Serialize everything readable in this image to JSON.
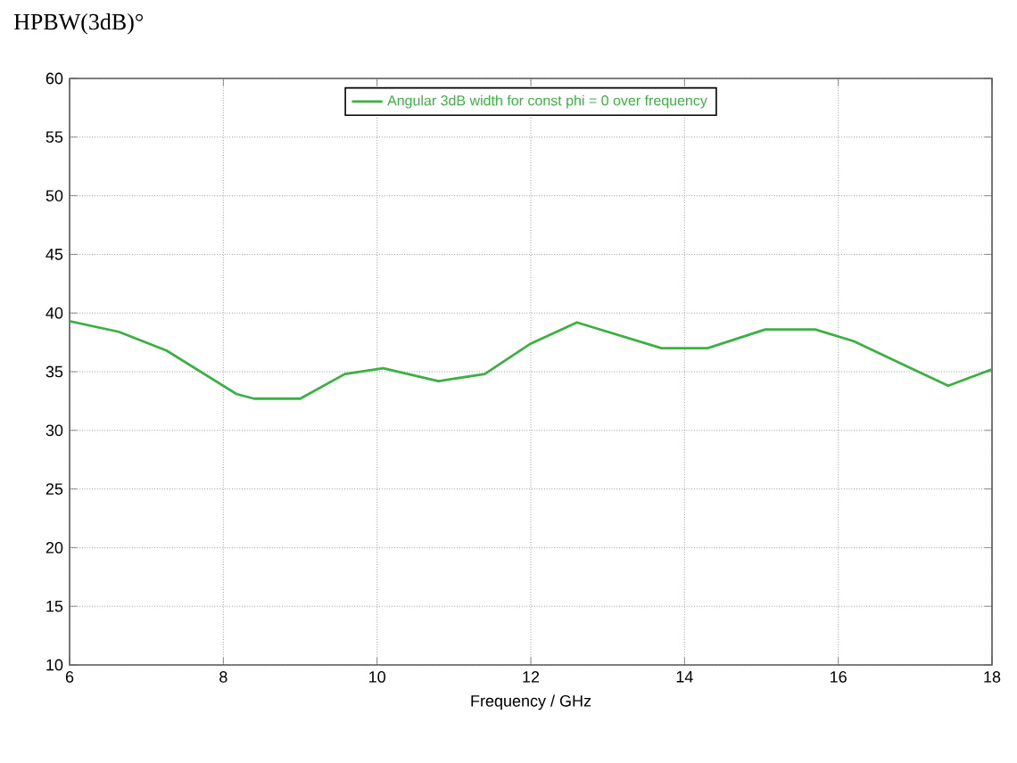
{
  "chart_data": {
    "type": "line",
    "title": "HPBW(3dB)°",
    "xlabel": "Frequency / GHz",
    "x": [
      6,
      6.64,
      7.26,
      8.17,
      8.4,
      9.0,
      9.58,
      10.08,
      10.8,
      11.4,
      12.0,
      12.6,
      13.7,
      14.3,
      15.05,
      15.7,
      16.2,
      16.88,
      17.43,
      18
    ],
    "series": [
      {
        "name": "Angular 3dB width for const phi = 0 over frequency",
        "color": "#3cb043",
        "values": [
          39.3,
          38.4,
          36.8,
          33.1,
          32.7,
          32.7,
          34.8,
          35.3,
          34.2,
          34.8,
          37.4,
          39.2,
          37,
          37,
          38.6,
          38.6,
          37.6,
          35.5,
          33.8,
          35.2
        ]
      }
    ],
    "xlim": [
      6,
      18
    ],
    "ylim": [
      10,
      60
    ],
    "xticks": [
      6,
      8,
      10,
      12,
      14,
      16,
      18
    ],
    "yticks": [
      10,
      15,
      20,
      25,
      30,
      35,
      40,
      45,
      50,
      55,
      60
    ],
    "grid": true,
    "legend": "top",
    "marker": "none",
    "line_style": "solid"
  }
}
